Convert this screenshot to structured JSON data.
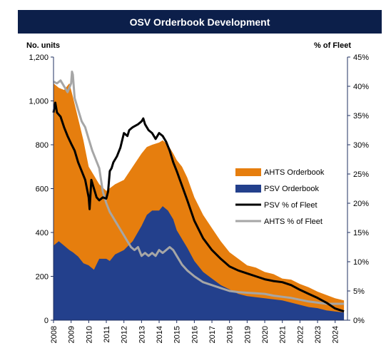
{
  "title": "OSV Orderbook Development",
  "colors": {
    "title_bg": "#0c1f4a",
    "ahts_orderbook": "#e67e0e",
    "psv_orderbook": "#23408c",
    "psv_pct": "#000000",
    "ahts_pct": "#a6a6a6",
    "axis": "#203060"
  },
  "chart_data": {
    "type": "area",
    "title": "OSV Orderbook Development",
    "ylabel_left": "No. units",
    "ylabel_right": "% of Fleet",
    "ylim_left": [
      0,
      1200
    ],
    "ylim_right": [
      0,
      45
    ],
    "xlim": [
      2008,
      2024.7
    ],
    "x_ticks": [
      "2008",
      "2009",
      "2010",
      "2011",
      "2012",
      "2013",
      "2014",
      "2015",
      "2016",
      "2017",
      "2018",
      "2019",
      "2020",
      "2021",
      "2022",
      "2023",
      "2024"
    ],
    "y_ticks_left": [
      "0",
      "200",
      "400",
      "600",
      "800",
      "1,000",
      "1,200"
    ],
    "y_ticks_right": [
      "0%",
      "5%",
      "10%",
      "15%",
      "20%",
      "25%",
      "30%",
      "35%",
      "40%",
      "45%"
    ],
    "legend_position": "right",
    "series": [
      {
        "name": "AHTS Orderbook",
        "type": "stacked-area",
        "axis": "left",
        "color": "#e67e0e",
        "x": [
          2008.0,
          2008.3,
          2008.6,
          2008.9,
          2009.1,
          2009.4,
          2009.7,
          2010.0,
          2010.3,
          2010.6,
          2011.0,
          2011.5,
          2012.0,
          2012.5,
          2013.0,
          2013.3,
          2013.6,
          2014.0,
          2014.2,
          2014.5,
          2014.8,
          2015.0,
          2015.3,
          2015.6,
          2016.0,
          2016.5,
          2017.0,
          2017.5,
          2018.0,
          2018.5,
          2019.0,
          2019.5,
          2020.0,
          2020.5,
          2021.0,
          2021.5,
          2022.0,
          2022.5,
          2023.0,
          2023.5,
          2024.0,
          2024.5
        ],
        "values": [
          1080,
          1060,
          1050,
          1080,
          1020,
          920,
          820,
          700,
          660,
          620,
          590,
          620,
          640,
          700,
          760,
          790,
          800,
          810,
          820,
          800,
          760,
          730,
          700,
          650,
          560,
          480,
          420,
          360,
          310,
          280,
          250,
          240,
          220,
          210,
          190,
          185,
          165,
          150,
          130,
          115,
          100,
          90
        ]
      },
      {
        "name": "PSV Orderbook",
        "type": "stacked-area",
        "axis": "left",
        "color": "#23408c",
        "x": [
          2008.0,
          2008.3,
          2008.6,
          2008.9,
          2009.1,
          2009.4,
          2009.7,
          2010.0,
          2010.3,
          2010.6,
          2011.0,
          2011.2,
          2011.5,
          2012.0,
          2012.5,
          2013.0,
          2013.3,
          2013.6,
          2014.0,
          2014.2,
          2014.5,
          2014.8,
          2015.0,
          2015.3,
          2015.6,
          2016.0,
          2016.5,
          2017.0,
          2017.5,
          2018.0,
          2018.5,
          2019.0,
          2019.5,
          2020.0,
          2020.5,
          2021.0,
          2021.5,
          2022.0,
          2022.5,
          2023.0,
          2023.5,
          2024.0,
          2024.5
        ],
        "values": [
          340,
          360,
          340,
          320,
          310,
          290,
          260,
          250,
          230,
          280,
          280,
          270,
          300,
          320,
          360,
          430,
          480,
          500,
          500,
          520,
          500,
          460,
          410,
          370,
          330,
          270,
          220,
          190,
          160,
          140,
          120,
          110,
          105,
          100,
          95,
          90,
          80,
          70,
          60,
          55,
          45,
          40,
          35
        ]
      },
      {
        "name": "PSV % of Fleet",
        "type": "line",
        "axis": "right",
        "color": "#000000",
        "x": [
          2008.0,
          2008.1,
          2008.2,
          2008.4,
          2008.6,
          2008.8,
          2009.0,
          2009.2,
          2009.4,
          2009.6,
          2009.8,
          2010.0,
          2010.05,
          2010.15,
          2010.3,
          2010.45,
          2010.6,
          2010.8,
          2011.0,
          2011.1,
          2011.2,
          2011.3,
          2011.4,
          2011.6,
          2011.8,
          2012.0,
          2012.2,
          2012.3,
          2012.5,
          2012.8,
          2013.0,
          2013.1,
          2013.2,
          2013.4,
          2013.6,
          2013.8,
          2014.0,
          2014.2,
          2014.4,
          2014.6,
          2014.8,
          2015.0,
          2015.3,
          2015.6,
          2016.0,
          2016.5,
          2017.0,
          2017.5,
          2018.0,
          2018.5,
          2019.0,
          2019.5,
          2020.0,
          2020.5,
          2021.0,
          2021.5,
          2022.0,
          2022.5,
          2023.0,
          2023.5,
          2024.0,
          2024.5
        ],
        "values": [
          35.5,
          37.2,
          35.5,
          34.8,
          33.0,
          31.5,
          30.2,
          29.0,
          27.0,
          25.5,
          24.0,
          21.0,
          19.0,
          24.0,
          22.5,
          21.0,
          20.5,
          21.0,
          20.8,
          22.0,
          25.5,
          26.0,
          27.0,
          28.0,
          29.5,
          32.0,
          31.5,
          32.5,
          33.0,
          33.5,
          34.0,
          34.5,
          33.5,
          32.5,
          32.0,
          31.0,
          32.0,
          31.5,
          30.5,
          29.0,
          27.0,
          25.5,
          23.0,
          20.5,
          17.0,
          14.0,
          12.0,
          10.5,
          9.2,
          8.5,
          8.0,
          7.5,
          7.0,
          6.7,
          6.5,
          6.0,
          5.2,
          4.5,
          3.8,
          3.0,
          2.0,
          1.5
        ]
      },
      {
        "name": "AHTS % of Fleet",
        "type": "line",
        "axis": "right",
        "color": "#a6a6a6",
        "x": [
          2008.0,
          2008.2,
          2008.4,
          2008.6,
          2008.8,
          2009.0,
          2009.05,
          2009.1,
          2009.2,
          2009.4,
          2009.6,
          2009.8,
          2010.0,
          2010.2,
          2010.4,
          2010.6,
          2010.8,
          2011.0,
          2011.2,
          2011.4,
          2011.6,
          2011.8,
          2012.0,
          2012.2,
          2012.4,
          2012.6,
          2012.8,
          2013.0,
          2013.2,
          2013.4,
          2013.6,
          2013.8,
          2014.0,
          2014.2,
          2014.4,
          2014.6,
          2014.8,
          2015.0,
          2015.3,
          2015.6,
          2016.0,
          2016.5,
          2017.0,
          2017.5,
          2018.0,
          2018.5,
          2019.0,
          2019.5,
          2020.0,
          2020.5,
          2021.0,
          2021.5,
          2022.0,
          2022.5,
          2023.0,
          2023.5,
          2024.0,
          2024.5
        ],
        "values": [
          40.8,
          40.5,
          41.0,
          40.0,
          39.0,
          40.5,
          42.5,
          42.0,
          38.0,
          36.0,
          34.0,
          33.0,
          31.0,
          29.0,
          27.5,
          26.0,
          22.0,
          20.0,
          18.5,
          17.5,
          16.5,
          15.5,
          14.5,
          13.5,
          12.5,
          12.0,
          12.5,
          11.0,
          11.5,
          11.0,
          11.5,
          11.0,
          12.0,
          11.5,
          12.0,
          12.5,
          12.0,
          11.0,
          9.5,
          8.5,
          7.5,
          6.5,
          6.0,
          5.5,
          5.0,
          4.8,
          4.7,
          4.6,
          4.5,
          4.2,
          4.0,
          3.8,
          3.5,
          3.2,
          3.0,
          2.8,
          2.8,
          2.8
        ]
      }
    ]
  }
}
